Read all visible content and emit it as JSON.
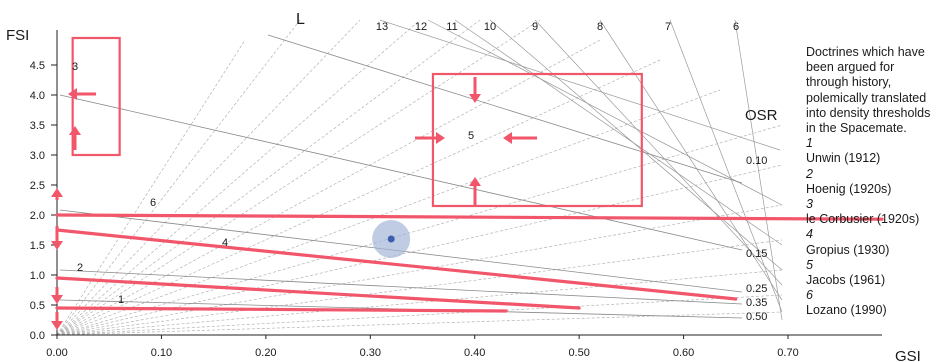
{
  "chart_data": {
    "type": "line",
    "xlabel": "GSI",
    "ylabel": "FSI",
    "xlim": [
      0,
      0.79
    ],
    "ylim": [
      0,
      5
    ],
    "x_ticks": [
      "0.00",
      "0.10",
      "0.20",
      "0.30",
      "0.40",
      "0.50",
      "0.60",
      "0.70"
    ],
    "x_tick_values": [
      0,
      0.1,
      0.2,
      0.3,
      0.4,
      0.5,
      0.6,
      0.7
    ],
    "y_ticks": [
      "0.0",
      "0.5",
      "1.0",
      "1.5",
      "2.0",
      "2.5",
      "3.0",
      "3.5",
      "4.0",
      "4.5"
    ],
    "y_tick_values": [
      0,
      0.5,
      1.0,
      1.5,
      2.0,
      2.5,
      3.0,
      3.5,
      4.0,
      4.5
    ],
    "l_axis_label": "L",
    "l_lines": [
      {
        "label": "6",
        "value": 6
      },
      {
        "label": "7",
        "value": 7
      },
      {
        "label": "8",
        "value": 8
      },
      {
        "label": "9",
        "value": 9
      },
      {
        "label": "10",
        "value": 10
      },
      {
        "label": "11",
        "value": 11
      },
      {
        "label": "12",
        "value": 12
      },
      {
        "label": "13",
        "value": 13
      }
    ],
    "osr_axis_label": "OSR",
    "osr_lines": [
      {
        "label": "0.10",
        "value": 0.1
      },
      {
        "label": "0.15",
        "value": 0.15
      },
      {
        "label": "0.25",
        "value": 0.25
      },
      {
        "label": "0.35",
        "value": 0.35
      },
      {
        "label": "0.50",
        "value": 0.5
      }
    ],
    "thresholds": [
      {
        "label": "1",
        "x_end": 0.43,
        "y_start": 0.45,
        "y_end": 0.4
      },
      {
        "label": "2",
        "x_end": 0.5,
        "y_start": 0.95,
        "y_end": 0.45
      },
      {
        "label": "4",
        "x_end": 0.65,
        "y_start": 1.75,
        "y_end": 0.6
      },
      {
        "label": "6",
        "x_end": 0.79,
        "y_start": 2.0,
        "y_end": 1.93
      }
    ],
    "boxes": [
      {
        "label": "3",
        "x": [
          0.015,
          0.06
        ],
        "y": [
          3.0,
          4.95
        ]
      },
      {
        "label": "5",
        "x": [
          0.36,
          0.56
        ],
        "y": [
          2.15,
          4.35
        ]
      }
    ],
    "highlight_point": {
      "x": 0.32,
      "y": 1.6
    },
    "colors": {
      "threshold": "#f1566a",
      "guide": "#8a8a8a",
      "point": "#3a5fae",
      "halo": "#9db0d6"
    }
  },
  "caption": {
    "intro": "Doctrines which have been argued for through history, polemically translated into density thresholds in the Spacemate.",
    "entries": [
      {
        "num": "1",
        "ref": "Unwin (1912)"
      },
      {
        "num": "2",
        "ref": "Hoenig (1920s)"
      },
      {
        "num": "3",
        "ref": "le Corbusier (1920s)"
      },
      {
        "num": "4",
        "ref": "Gropius (1930)"
      },
      {
        "num": "5",
        "ref": "Jacobs (1961)"
      },
      {
        "num": "6",
        "ref": "Lozano (1990)"
      }
    ]
  }
}
